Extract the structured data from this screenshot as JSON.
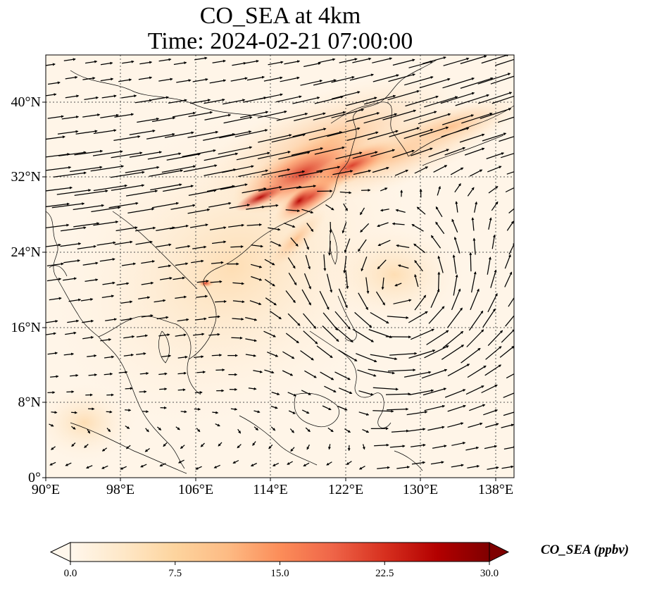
{
  "title": {
    "line1": "CO_SEA at 4km",
    "line2": "Time: 2024-02-21 07:00:00"
  },
  "map": {
    "projection": "PlateCarree",
    "lon_range": [
      90,
      140
    ],
    "lat_range": [
      0,
      45
    ],
    "gridlines": "dotted",
    "lon_ticks": [
      "90°E",
      "98°E",
      "106°E",
      "114°E",
      "122°E",
      "130°E",
      "138°E"
    ],
    "lat_ticks": [
      "0°",
      "8°N",
      "16°N",
      "24°N",
      "32°N",
      "40°N"
    ],
    "layers": [
      "CO_SEA concentration field",
      "coastlines",
      "wind vectors"
    ],
    "features": {
      "plume": "elevated CO from central/south-east China extending north-east over the Yellow Sea, Korea and Japan",
      "cyclone": "anticyclonic wind circulation centred near 128°E, 20°N"
    }
  },
  "colorbar": {
    "label": "CO_SEA (ppbv)",
    "colormap": "OrRd",
    "ticks": [
      "0.0",
      "7.5",
      "15.0",
      "22.5",
      "30.0"
    ],
    "vmin": 0,
    "vmax": 30,
    "extend": "both",
    "stops": [
      "#fff7ec",
      "#fee8c8",
      "#fdd49e",
      "#fdbb84",
      "#fc8d59",
      "#ef6548",
      "#d7301f",
      "#b30000",
      "#7f0000"
    ]
  },
  "colors": {
    "vector": "#000000",
    "coastline": "#000000",
    "grid": "#555555",
    "background_low": "#fff7ec"
  }
}
